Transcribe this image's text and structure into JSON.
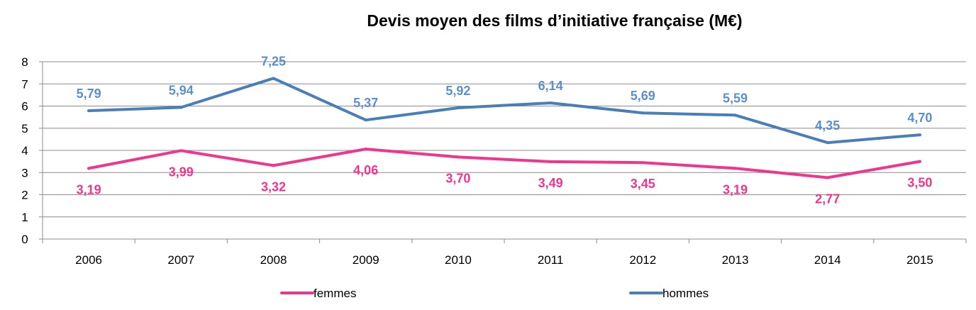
{
  "chart_data": {
    "type": "line",
    "title": "Devis moyen des films d’initiative française (M€)",
    "categories": [
      "2006",
      "2007",
      "2008",
      "2009",
      "2010",
      "2011",
      "2012",
      "2013",
      "2014",
      "2015"
    ],
    "ylim": [
      0,
      8
    ],
    "yticks": [
      "0",
      "1",
      "2",
      "3",
      "4",
      "5",
      "6",
      "7",
      "8"
    ],
    "grid": true,
    "legend_position": "bottom",
    "series": [
      {
        "name": "femmes",
        "color": "#F0368C",
        "values": [
          3.19,
          3.99,
          3.32,
          4.06,
          3.7,
          3.49,
          3.45,
          3.19,
          2.77,
          3.5
        ],
        "labels": [
          "3,19",
          "3,99",
          "3,32",
          "4,06",
          "3,70",
          "3,49",
          "3,45",
          "3,19",
          "2,77",
          "3,50"
        ]
      },
      {
        "name": "hommes",
        "color": "#4A7EBB",
        "label_color": "#5B8FCC",
        "values": [
          5.79,
          5.94,
          7.25,
          5.37,
          5.92,
          6.14,
          5.69,
          5.59,
          4.35,
          4.7
        ],
        "labels": [
          "5,79",
          "5,94",
          "7,25",
          "5,37",
          "5,92",
          "6,14",
          "5,69",
          "5,59",
          "4,35",
          "4,70"
        ]
      }
    ]
  }
}
